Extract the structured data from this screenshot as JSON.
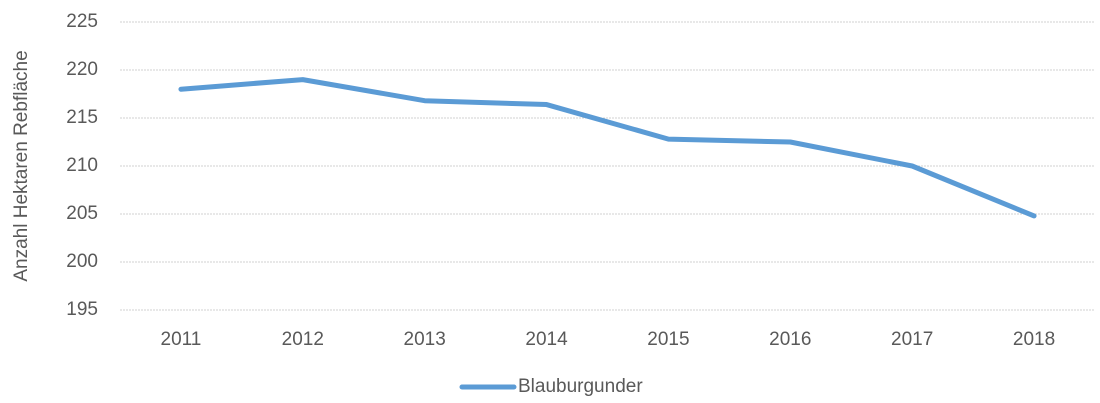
{
  "chart_data": {
    "type": "line",
    "y_axis_label": "Anzahl Hektaren Rebfläche",
    "categories": [
      "2011",
      "2012",
      "2013",
      "2014",
      "2015",
      "2016",
      "2017",
      "2018"
    ],
    "series": [
      {
        "name": "Blauburgunder",
        "color": "#5b9bd5",
        "values": [
          218,
          219,
          216.8,
          216.4,
          212.8,
          212.5,
          210,
          204.8
        ]
      }
    ],
    "ylim": [
      195,
      225
    ],
    "yticks": [
      195,
      200,
      205,
      210,
      215,
      220,
      225
    ],
    "grid": true,
    "legend": "bottom"
  }
}
